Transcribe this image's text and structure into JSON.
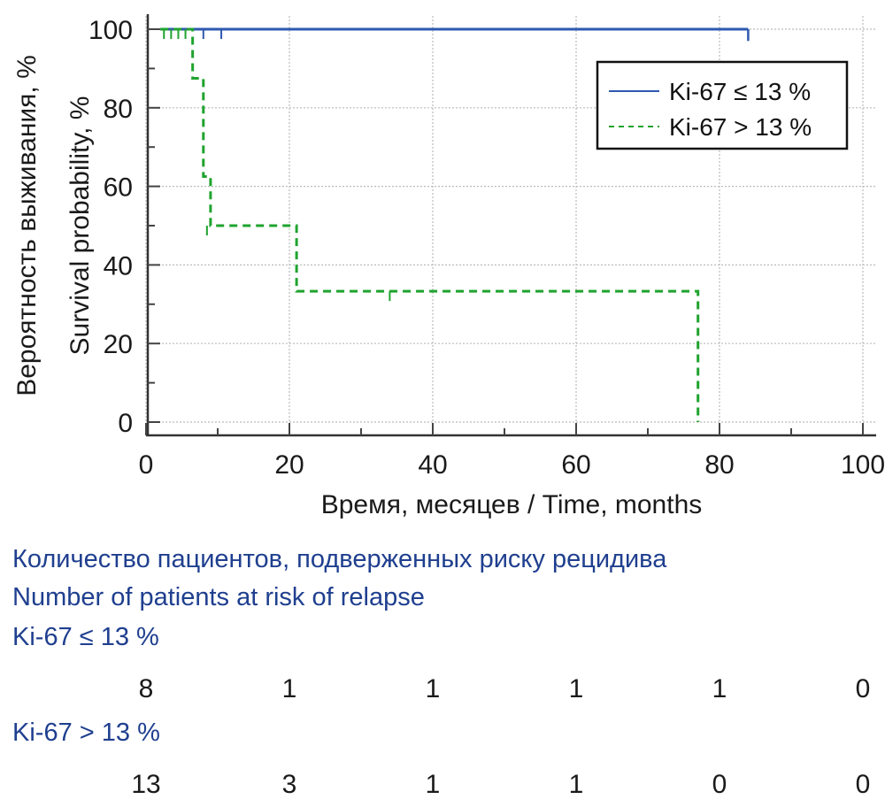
{
  "chart_data": {
    "type": "line",
    "subtype": "kaplan-meier",
    "title": "",
    "xlabel": "Время, месяцев / Time, months",
    "ylabel_ru": "Вероятность выживания, %",
    "ylabel_en": "Survival probability, %",
    "xlim": [
      0,
      100
    ],
    "ylim": [
      0,
      100
    ],
    "x_ticks": [
      0,
      20,
      40,
      60,
      80,
      100
    ],
    "x_minor_ticks": [
      10,
      30,
      50,
      70,
      90
    ],
    "y_ticks": [
      0,
      20,
      40,
      60,
      80,
      100
    ],
    "y_minor_ticks": [
      10,
      30,
      50,
      70,
      90
    ],
    "grid": true,
    "legend_position": "top-right",
    "series": [
      {
        "name": "Ki-67 ≤ 13 %",
        "color": "#2e58b0",
        "style": "solid",
        "steps": [
          [
            2,
            100
          ],
          [
            84,
            100
          ]
        ],
        "end_drop": [
          84,
          97
        ],
        "censored": [
          [
            8,
            100
          ],
          [
            10.5,
            100
          ]
        ]
      },
      {
        "name": "Ki-67 > 13 %",
        "color": "#1fa32e",
        "style": "dashed",
        "steps": [
          [
            2,
            100
          ],
          [
            6.5,
            100
          ],
          [
            6.5,
            87.5
          ],
          [
            8,
            87.5
          ],
          [
            8,
            62.5
          ],
          [
            9,
            62.5
          ],
          [
            9,
            50
          ],
          [
            21,
            50
          ],
          [
            21,
            33.3
          ],
          [
            77,
            33.3
          ],
          [
            77,
            0
          ]
        ],
        "censored": [
          [
            2.5,
            100
          ],
          [
            3.5,
            100
          ],
          [
            4.5,
            100
          ],
          [
            5.5,
            100
          ],
          [
            8.5,
            50
          ],
          [
            34,
            33.3
          ]
        ]
      }
    ]
  },
  "risk_table": {
    "title_ru": "Количество пациентов, подверженных риску рецидива",
    "title_en": "Number of patients at risk of relapse",
    "time_points": [
      0,
      20,
      40,
      60,
      80,
      100
    ],
    "groups": [
      {
        "label": "Ki-67 ≤ 13 %",
        "counts": [
          "8",
          "1",
          "1",
          "1",
          "1",
          "0"
        ]
      },
      {
        "label": "Ki-67 > 13 %",
        "counts": [
          "13",
          "3",
          "1",
          "1",
          "0",
          "0"
        ]
      }
    ]
  }
}
